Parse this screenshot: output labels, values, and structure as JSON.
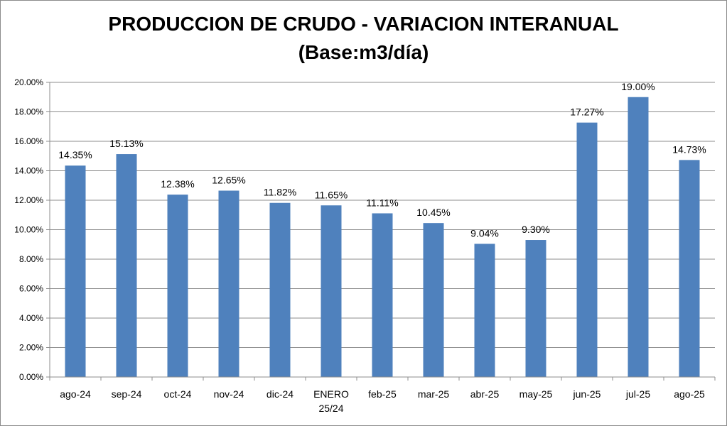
{
  "chart_data": {
    "type": "bar",
    "title": "PRODUCCION DE CRUDO - VARIACION INTERANUAL",
    "subtitle": "(Base:m3/día)",
    "categories": [
      "ago-24",
      "sep-24",
      "oct-24",
      "nov-24",
      "dic-24",
      "ENERO 25/24",
      "feb-25",
      "mar-25",
      "abr-25",
      "may-25",
      "jun-25",
      "jul-25",
      "ago-25"
    ],
    "values": [
      14.35,
      15.13,
      12.38,
      12.65,
      11.82,
      11.65,
      11.11,
      10.45,
      9.04,
      9.3,
      17.27,
      19.0,
      14.73
    ],
    "data_labels": [
      "14.35%",
      "15.13%",
      "12.38%",
      "12.65%",
      "11.82%",
      "11.65%",
      "11.11%",
      "10.45%",
      "9.04%",
      "9.30%",
      "17.27%",
      "19.00%",
      "14.73%"
    ],
    "y_ticks": [
      "0.00%",
      "2.00%",
      "4.00%",
      "6.00%",
      "8.00%",
      "10.00%",
      "12.00%",
      "14.00%",
      "16.00%",
      "18.00%",
      "20.00%"
    ],
    "ylim": [
      0,
      20
    ],
    "y_unit": "%",
    "grid": true,
    "legend": "none",
    "bar_color": "#4f81bd",
    "grid_color": "#8c8c8c"
  }
}
